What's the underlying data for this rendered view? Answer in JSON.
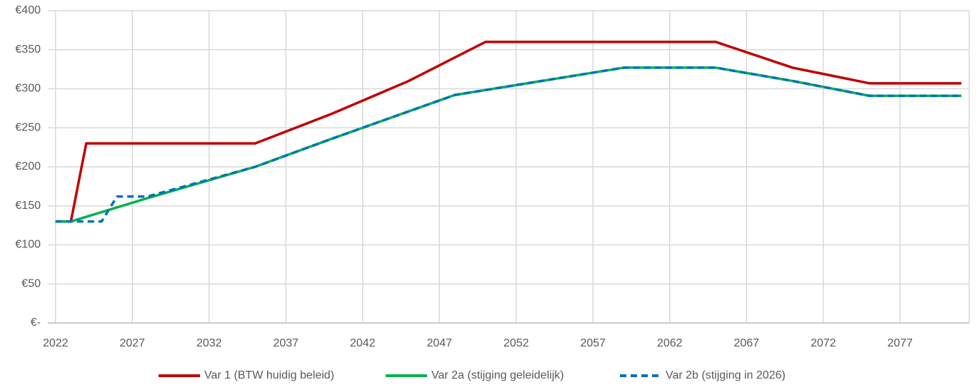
{
  "chart_data": {
    "type": "line",
    "xlim": [
      2021.5,
      2081.5
    ],
    "xticks": [
      2022,
      2027,
      2032,
      2037,
      2042,
      2047,
      2052,
      2057,
      2062,
      2067,
      2072,
      2077
    ],
    "ylim": [
      0,
      400
    ],
    "yticks": [
      {
        "value": 0,
        "label": "€-"
      },
      {
        "value": 50,
        "label": "€50"
      },
      {
        "value": 100,
        "label": "€100"
      },
      {
        "value": 150,
        "label": "€150"
      },
      {
        "value": 200,
        "label": "€200"
      },
      {
        "value": 250,
        "label": "€250"
      },
      {
        "value": 300,
        "label": "€300"
      },
      {
        "value": 350,
        "label": "€350"
      },
      {
        "value": 400,
        "label": "€400"
      }
    ],
    "grid": true,
    "legend": "bottom",
    "series": [
      {
        "name": "Var 1 (BTW huidig beleid)",
        "color": "#c00000",
        "dash": false,
        "x": [
          2022,
          2023,
          2024,
          2035,
          2040,
          2045,
          2050,
          2065,
          2070,
          2075,
          2081
        ],
        "values": [
          130,
          130,
          230,
          230,
          268,
          310,
          360,
          360,
          327,
          307,
          307
        ]
      },
      {
        "name": "Var 2a (stijging geleidelijk)",
        "color": "#00b050",
        "dash": false,
        "x": [
          2022,
          2023,
          2028,
          2035,
          2040,
          2048,
          2059,
          2065,
          2070,
          2075,
          2081
        ],
        "values": [
          130,
          130,
          160,
          200,
          236,
          292,
          327,
          327,
          310,
          291,
          291
        ]
      },
      {
        "name": "Var 2b (stijging in 2026)",
        "color": "#0070c0",
        "dash": true,
        "x": [
          2022,
          2025,
          2026,
          2028,
          2035,
          2040,
          2048,
          2059,
          2065,
          2070,
          2075,
          2081
        ],
        "values": [
          130,
          130,
          162,
          162,
          200,
          236,
          292,
          327,
          327,
          310,
          291,
          291
        ]
      }
    ]
  }
}
